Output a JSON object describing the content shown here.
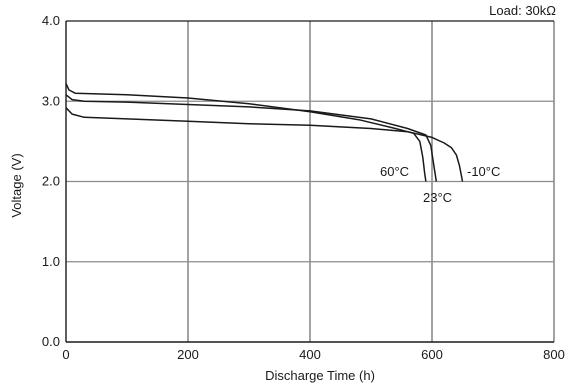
{
  "chart_data": {
    "type": "line",
    "title": "",
    "annotation": "Load: 30kΩ",
    "xlabel": "Discharge Time (h)",
    "ylabel": "Voltage (V)",
    "xlim": [
      0,
      800
    ],
    "ylim": [
      0,
      4
    ],
    "xticks": [
      0,
      200,
      400,
      600,
      800
    ],
    "yticks": [
      0,
      1,
      2,
      3,
      4
    ],
    "xtick_labels": [
      "0",
      "200",
      "400",
      "600",
      "800"
    ],
    "ytick_labels": [
      "0.0",
      "1.0",
      "2.0",
      "3.0",
      "4.0"
    ],
    "grid": true,
    "colors": {
      "line": "#1a1a1a",
      "grid": "#8c8c8c",
      "axis": "#1a1a1a"
    },
    "series": [
      {
        "name": "60°C",
        "points": [
          [
            0,
            3.22
          ],
          [
            5,
            3.14
          ],
          [
            15,
            3.1
          ],
          [
            100,
            3.08
          ],
          [
            200,
            3.04
          ],
          [
            300,
            2.97
          ],
          [
            400,
            2.87
          ],
          [
            480,
            2.77
          ],
          [
            540,
            2.66
          ],
          [
            570,
            2.6
          ],
          [
            580,
            2.5
          ],
          [
            585,
            2.3
          ],
          [
            588,
            2.1
          ],
          [
            590,
            2.0
          ]
        ]
      },
      {
        "name": "23°C",
        "points": [
          [
            0,
            3.08
          ],
          [
            10,
            3.02
          ],
          [
            30,
            3.0
          ],
          [
            100,
            2.99
          ],
          [
            200,
            2.96
          ],
          [
            300,
            2.93
          ],
          [
            400,
            2.88
          ],
          [
            500,
            2.78
          ],
          [
            560,
            2.66
          ],
          [
            590,
            2.58
          ],
          [
            598,
            2.45
          ],
          [
            602,
            2.25
          ],
          [
            605,
            2.1
          ],
          [
            607,
            2.0
          ]
        ]
      },
      {
        "name": "-10°C",
        "points": [
          [
            0,
            2.92
          ],
          [
            10,
            2.84
          ],
          [
            30,
            2.8
          ],
          [
            100,
            2.78
          ],
          [
            200,
            2.75
          ],
          [
            300,
            2.72
          ],
          [
            400,
            2.7
          ],
          [
            500,
            2.66
          ],
          [
            560,
            2.62
          ],
          [
            600,
            2.55
          ],
          [
            620,
            2.48
          ],
          [
            632,
            2.42
          ],
          [
            640,
            2.33
          ],
          [
            645,
            2.2
          ],
          [
            648,
            2.08
          ],
          [
            650,
            2.0
          ]
        ]
      }
    ],
    "series_labels": [
      {
        "text": "60°C"
      },
      {
        "text": "23°C"
      },
      {
        "text": "-10°C"
      }
    ]
  }
}
